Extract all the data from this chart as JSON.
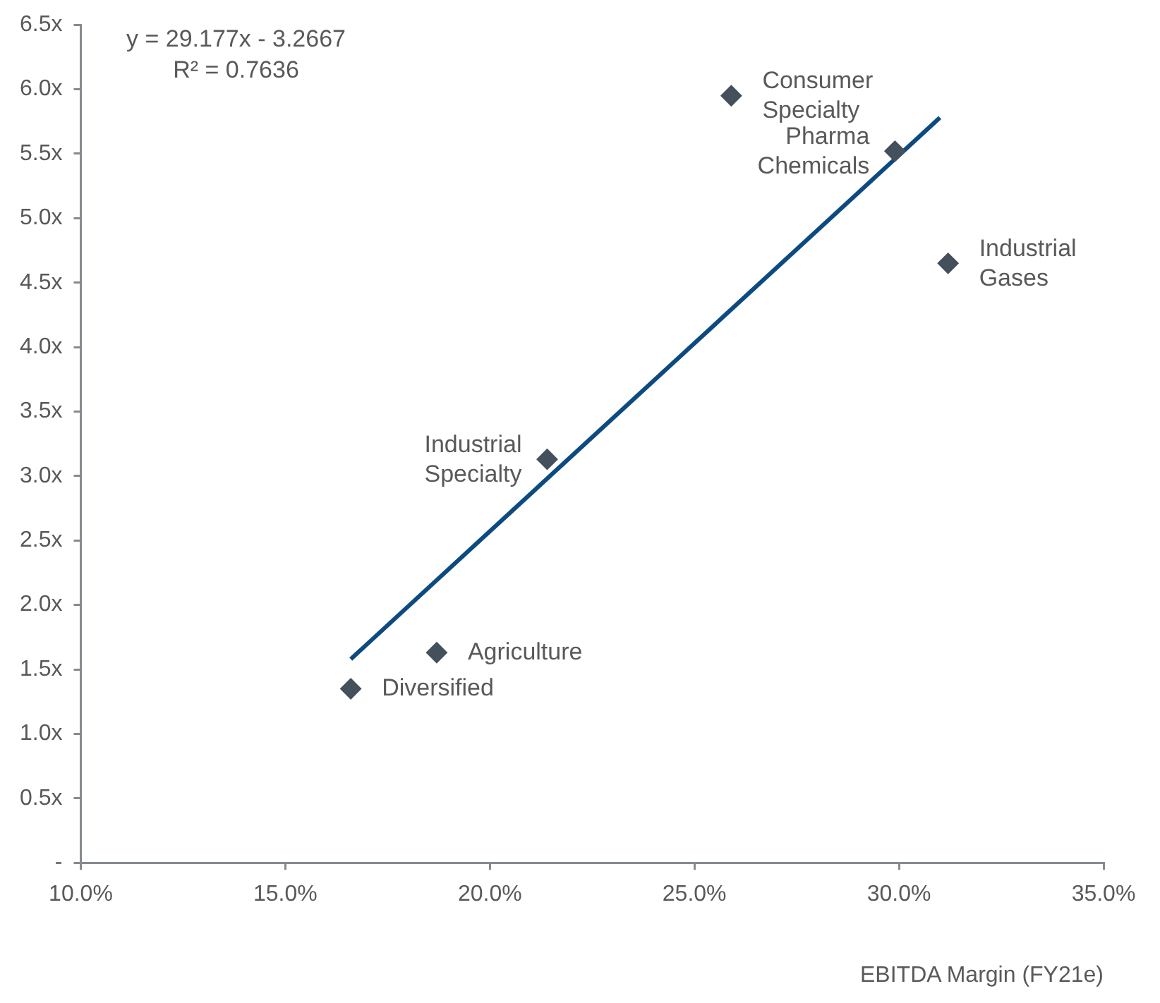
{
  "chart_data": {
    "type": "scatter",
    "xlabel": "EBITDA Margin (FY21e)",
    "series": [
      {
        "marker": "diamond",
        "color": "#44505c",
        "x": [
          25.9,
          29.9,
          31.2,
          21.4,
          18.7,
          16.6
        ],
        "values": [
          5.95,
          5.52,
          4.65,
          3.13,
          1.63,
          1.35
        ]
      },
      {
        "type": "line",
        "marker": "none",
        "color": "#0d4a80",
        "x": [
          16.6,
          31.0
        ],
        "values": [
          1.58,
          5.78
        ]
      }
    ],
    "xlim": [
      10,
      35
    ],
    "xticks": [
      {
        "value": 10,
        "label": "10.0%"
      },
      {
        "value": 15,
        "label": "15.0%"
      },
      {
        "value": 20,
        "label": "20.0%"
      },
      {
        "value": 25,
        "label": "25.0%"
      },
      {
        "value": 30,
        "label": "30.0%"
      },
      {
        "value": 35,
        "label": "35.0%"
      }
    ],
    "ylim": [
      0,
      6.5
    ],
    "yticks": [
      {
        "value": 0,
        "label": "-"
      },
      {
        "value": 0.5,
        "label": "0.5x"
      },
      {
        "value": 1,
        "label": "1.0x"
      },
      {
        "value": 1.5,
        "label": "1.5x"
      },
      {
        "value": 2,
        "label": "2.0x"
      },
      {
        "value": 2.5,
        "label": "2.5x"
      },
      {
        "value": 3,
        "label": "3.0x"
      },
      {
        "value": 3.5,
        "label": "3.5x"
      },
      {
        "value": 4,
        "label": "4.0x"
      },
      {
        "value": 4.5,
        "label": "4.5x"
      },
      {
        "value": 5,
        "label": "5.0x"
      },
      {
        "value": 5.5,
        "label": "5.5x"
      },
      {
        "value": 6,
        "label": "6.0x"
      },
      {
        "value": 6.5,
        "label": "6.5x"
      }
    ],
    "grid": false,
    "legend": false,
    "annotations": [
      "y = 29.177x - 3.2667",
      "R² = 0.7636",
      {
        "text": "Consumer Specialty",
        "x": 25.9,
        "y": 5.95
      },
      {
        "text": "Pharma Chemicals",
        "x": 29.9,
        "y": 5.52
      },
      {
        "text": "Industrial Gases",
        "x": 31.2,
        "y": 4.65
      },
      {
        "text": "Industrial Specialty",
        "x": 21.4,
        "y": 3.13
      },
      {
        "text": "Agriculture",
        "x": 18.7,
        "y": 1.63
      },
      {
        "text": "Diversified",
        "x": 16.6,
        "y": 1.35
      }
    ]
  }
}
